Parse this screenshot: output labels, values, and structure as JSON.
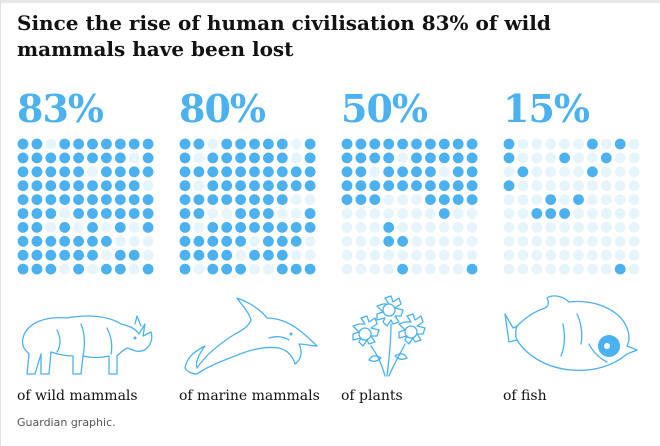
{
  "title": "Since the rise of human civilisation 83% of wild mammals have been lost",
  "source": "Guardian graphic.",
  "colors": {
    "accent": "#4bb1f0",
    "empty": "#e6f4fc"
  },
  "chart_data": [
    {
      "type": "waffle",
      "value_label": "83%",
      "value": 83,
      "caption": "of wild mammals",
      "icon": "rhino-icon",
      "grid": [
        10,
        10
      ]
    },
    {
      "type": "waffle",
      "value_label": "80%",
      "value": 80,
      "caption": "of marine mammals",
      "icon": "dolphin-icon",
      "grid": [
        10,
        10
      ]
    },
    {
      "type": "waffle",
      "value_label": "50%",
      "value": 50,
      "caption": "of plants",
      "icon": "flowers-icon",
      "grid": [
        10,
        10
      ]
    },
    {
      "type": "waffle",
      "value_label": "15%",
      "value": 15,
      "caption": "of fish",
      "icon": "fish-icon",
      "grid": [
        10,
        10
      ]
    }
  ]
}
